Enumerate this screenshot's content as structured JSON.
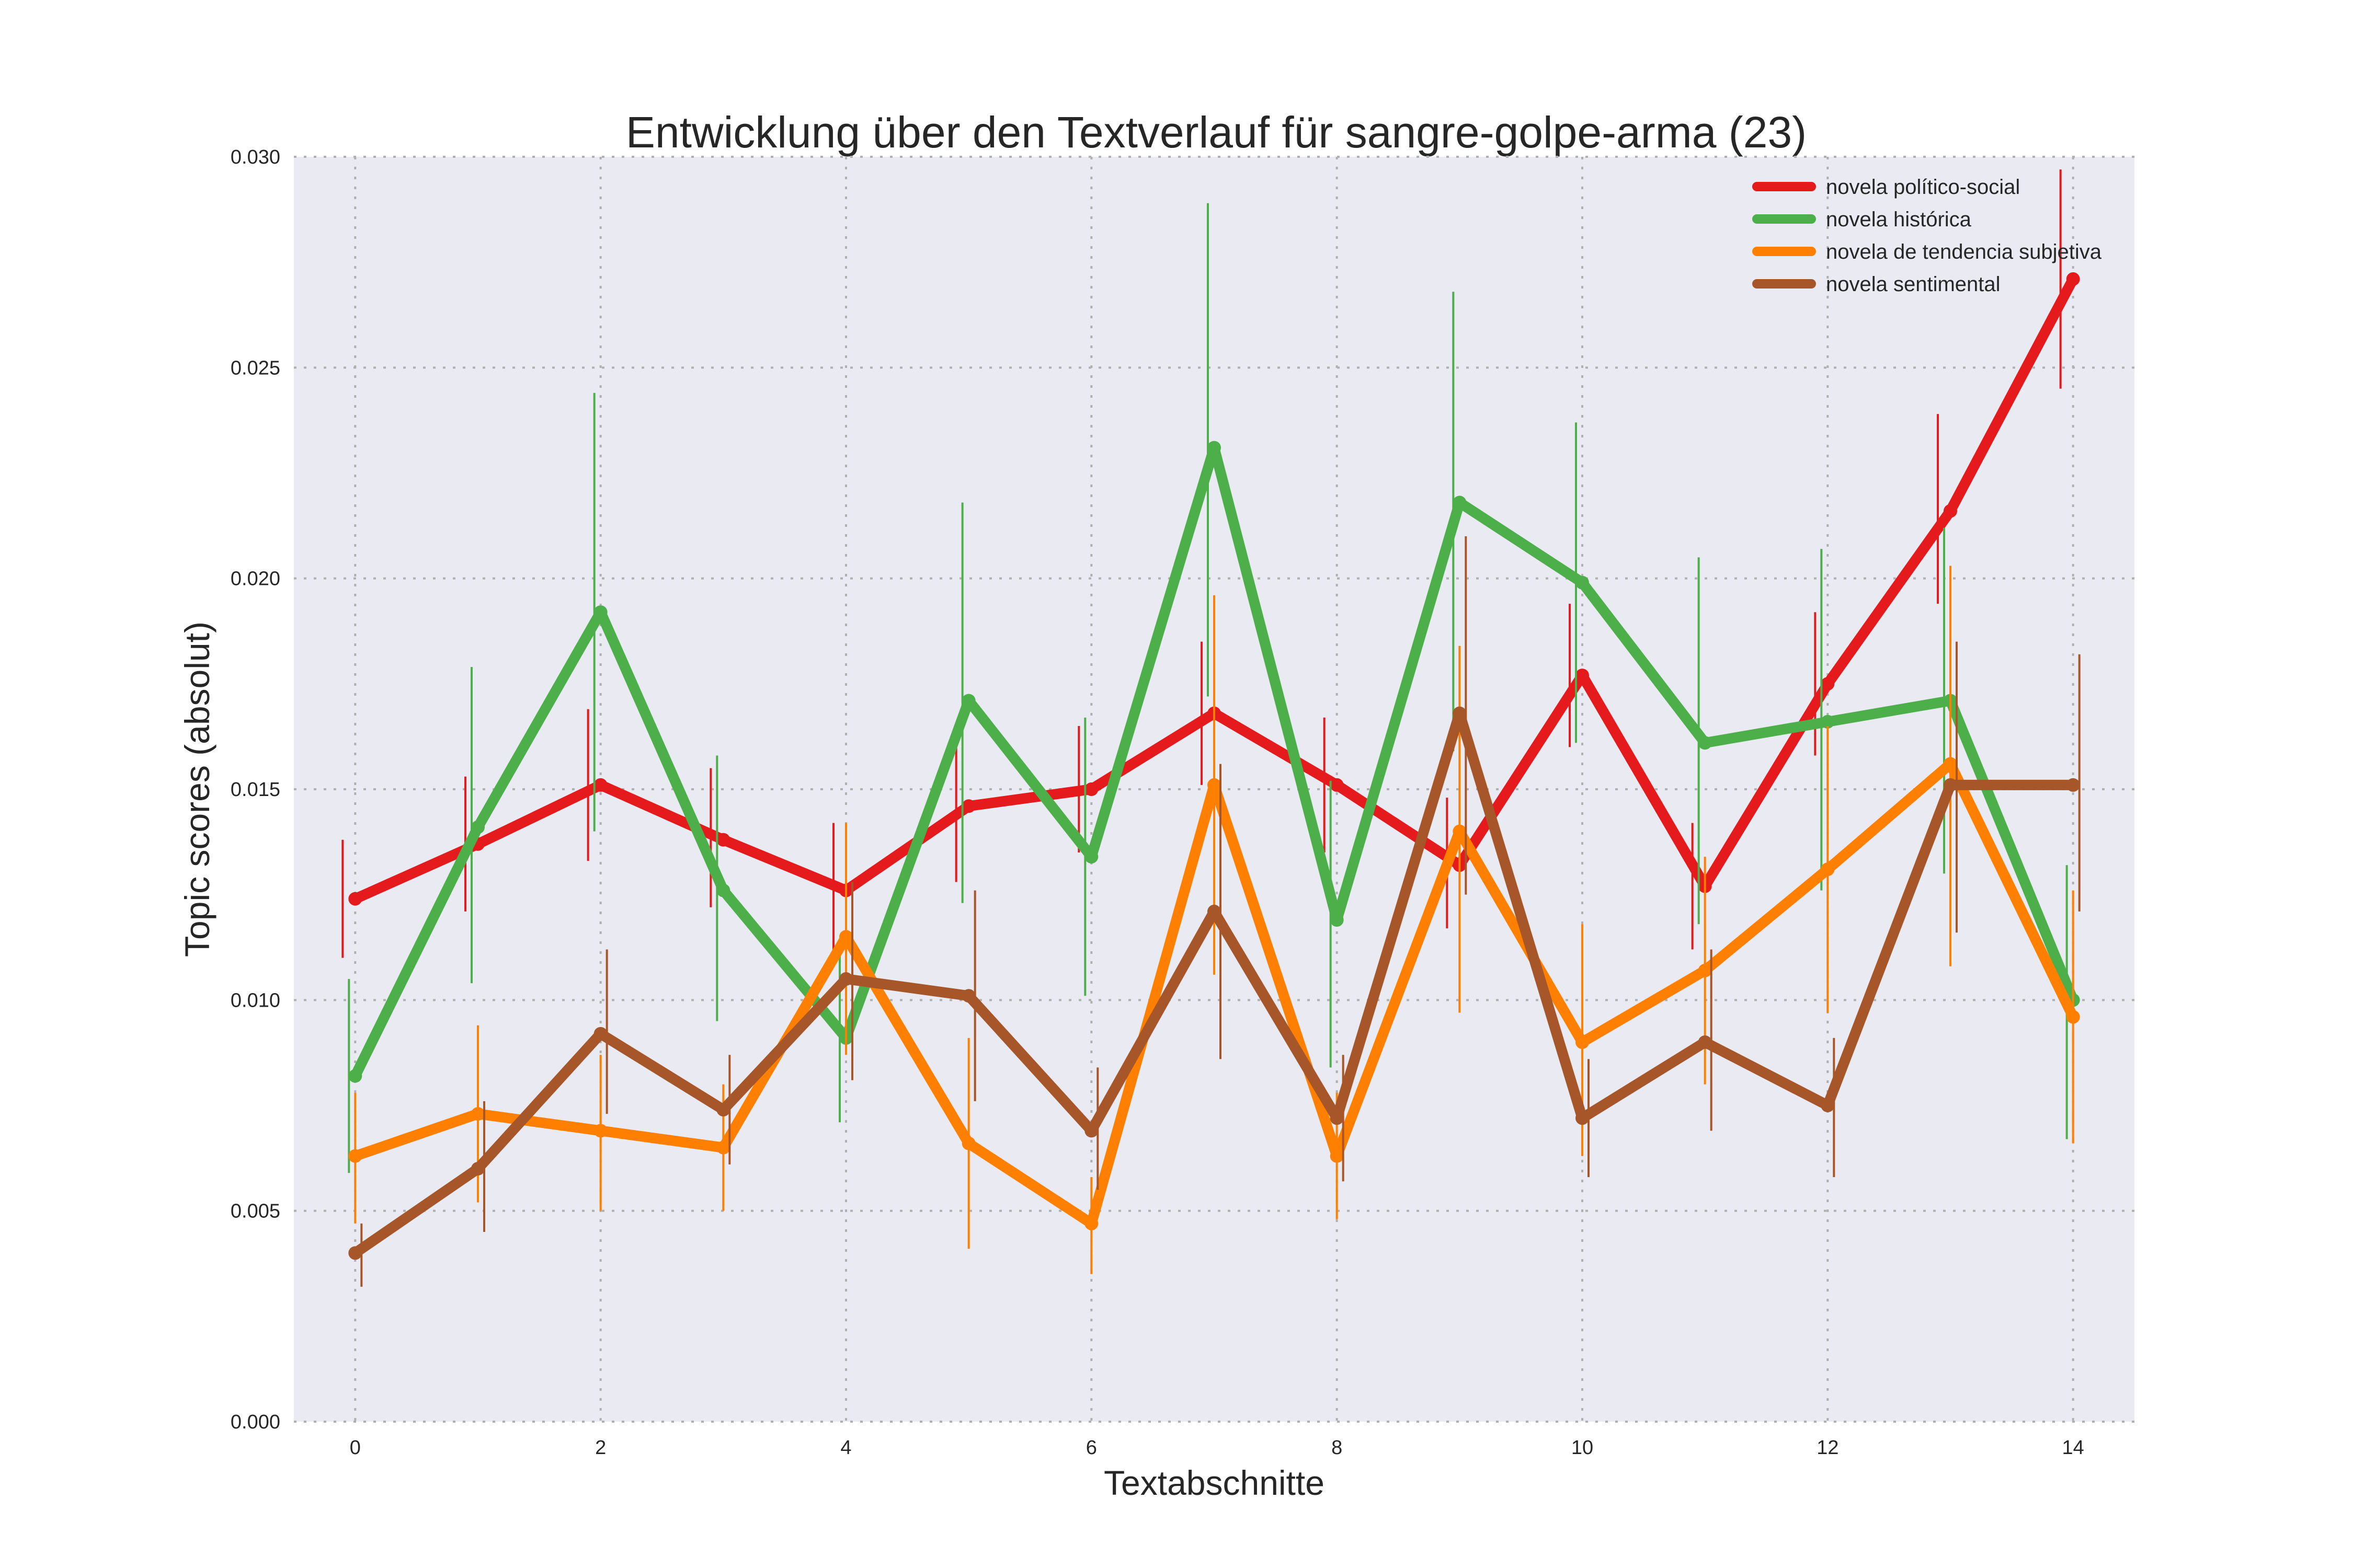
{
  "chart_data": {
    "type": "line",
    "title": "Entwicklung über den Textverlauf für sangre-golpe-arma (23)",
    "xlabel": "Textabschnitte",
    "ylabel": "Topic scores (absolut)",
    "x": [
      0,
      1,
      2,
      3,
      4,
      5,
      6,
      7,
      8,
      9,
      10,
      11,
      12,
      13,
      14
    ],
    "xlim": [
      -0.5,
      14.5
    ],
    "ylim": [
      0,
      0.03
    ],
    "xticks": [
      "0",
      "2",
      "4",
      "6",
      "8",
      "10",
      "12",
      "14"
    ],
    "yticks": [
      "0.000",
      "0.005",
      "0.010",
      "0.015",
      "0.020",
      "0.025",
      "0.030"
    ],
    "grid": true,
    "legend_position": "top-right",
    "series": [
      {
        "name": "novela político-social",
        "color": "#e41a1c",
        "values": [
          0.0124,
          0.0137,
          0.0151,
          0.0138,
          0.0126,
          0.0146,
          0.015,
          0.0168,
          0.0151,
          0.0132,
          0.0177,
          0.0127,
          0.0175,
          0.0216,
          0.0271
        ],
        "error_low": [
          0.011,
          0.0121,
          0.0133,
          0.0122,
          0.0111,
          0.0128,
          0.0135,
          0.0151,
          0.0135,
          0.0117,
          0.016,
          0.0112,
          0.0158,
          0.0194,
          0.0245
        ],
        "error_high": [
          0.0138,
          0.0153,
          0.0169,
          0.0155,
          0.0142,
          0.0165,
          0.0165,
          0.0185,
          0.0167,
          0.0148,
          0.0194,
          0.0142,
          0.0192,
          0.0239,
          0.0297
        ]
      },
      {
        "name": "novela histórica",
        "color": "#4daf4a",
        "values": [
          0.0082,
          0.0141,
          0.0192,
          0.0126,
          0.0091,
          0.0171,
          0.0134,
          0.0231,
          0.0119,
          0.0218,
          0.0199,
          0.0161,
          0.0166,
          0.0171,
          0.01
        ],
        "error_low": [
          0.0059,
          0.0104,
          0.014,
          0.0095,
          0.0071,
          0.0123,
          0.0101,
          0.0172,
          0.0084,
          0.0159,
          0.0161,
          0.0118,
          0.0126,
          0.013,
          0.0067
        ],
        "error_high": [
          0.0105,
          0.0179,
          0.0244,
          0.0158,
          0.0111,
          0.0218,
          0.0167,
          0.0289,
          0.0152,
          0.0268,
          0.0237,
          0.0205,
          0.0207,
          0.0212,
          0.0132
        ]
      },
      {
        "name": "novela de tendencia subjetiva",
        "color": "#ff7f00",
        "values": [
          0.0063,
          0.0073,
          0.0069,
          0.0065,
          0.0115,
          0.0066,
          0.0047,
          0.0151,
          0.0063,
          0.014,
          0.009,
          0.0107,
          0.0131,
          0.0156,
          0.0096
        ],
        "error_low": [
          0.0047,
          0.0052,
          0.005,
          0.005,
          0.0087,
          0.0041,
          0.0035,
          0.0106,
          0.0048,
          0.0097,
          0.0063,
          0.008,
          0.0097,
          0.0108,
          0.0066
        ],
        "error_high": [
          0.0078,
          0.0094,
          0.0087,
          0.008,
          0.0142,
          0.0091,
          0.0058,
          0.0196,
          0.0078,
          0.0184,
          0.0118,
          0.0134,
          0.0165,
          0.0203,
          0.0126
        ]
      },
      {
        "name": "novela sentimental",
        "color": "#a65628",
        "values": [
          0.004,
          0.006,
          0.0092,
          0.0074,
          0.0105,
          0.0101,
          0.0069,
          0.0121,
          0.0072,
          0.0168,
          0.0072,
          0.009,
          0.0075,
          0.0151,
          0.0151
        ],
        "error_low": [
          0.0032,
          0.0045,
          0.0073,
          0.0061,
          0.0081,
          0.0076,
          0.0055,
          0.0086,
          0.0057,
          0.0125,
          0.0058,
          0.0069,
          0.0058,
          0.0116,
          0.0121
        ],
        "error_high": [
          0.0047,
          0.0076,
          0.0112,
          0.0087,
          0.0128,
          0.0126,
          0.0084,
          0.0156,
          0.0087,
          0.021,
          0.0086,
          0.0112,
          0.0091,
          0.0185,
          0.0182
        ]
      }
    ]
  }
}
